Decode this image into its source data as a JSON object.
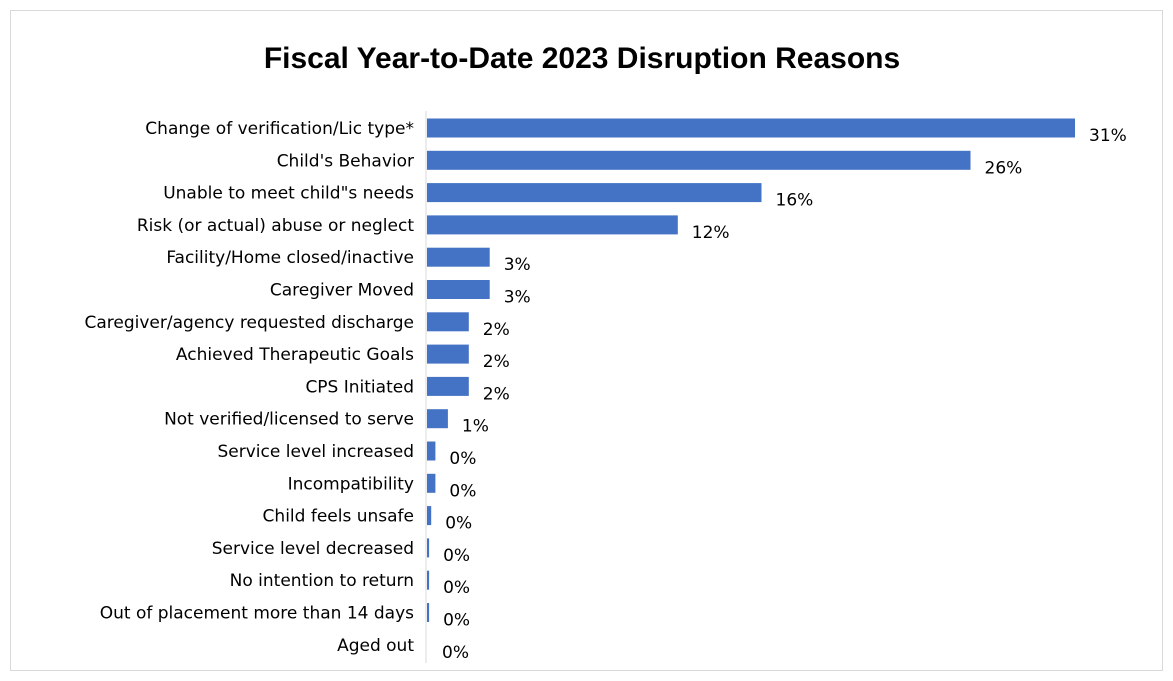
{
  "chart_data": {
    "type": "bar",
    "orientation": "horizontal",
    "title": "Fiscal Year-to-Date 2023 Disruption Reasons",
    "xlabel": "",
    "ylabel": "",
    "xlim": [
      0,
      31
    ],
    "grid": false,
    "legend": "none",
    "bar_color": "#4472c4",
    "categories": [
      "Change of verification/Lic type*",
      "Child's Behavior",
      "Unable to meet child\"s needs",
      "Risk (or actual) abuse or neglect",
      "Facility/Home closed/inactive",
      "Caregiver Moved",
      "Caregiver/agency requested discharge",
      "Achieved Therapeutic Goals",
      "CPS Initiated",
      "Not verified/licensed to serve",
      "Service level increased",
      "Incompatibility",
      "Child feels unsafe",
      "Service level decreased",
      "No intention to return",
      "Out of placement more than 14 days",
      "Aged out"
    ],
    "values": [
      31,
      26,
      16,
      12,
      3,
      3,
      2,
      2,
      2,
      1,
      0.4,
      0.4,
      0.2,
      0.1,
      0.1,
      0.1,
      0
    ],
    "value_labels": [
      "31%",
      "26%",
      "16%",
      "12%",
      "3%",
      "3%",
      "2%",
      "2%",
      "2%",
      "1%",
      "0%",
      "0%",
      "0%",
      "0%",
      "0%",
      "0%",
      "0%"
    ]
  }
}
